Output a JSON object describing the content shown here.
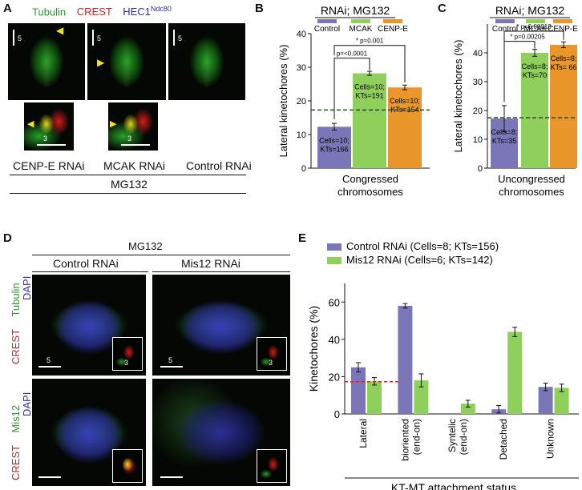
{
  "panels": {
    "A": {
      "label": "A",
      "legend": {
        "tubulin": "Tubulin",
        "crest": "CREST",
        "hec1": "HEC1",
        "hec1_sup": "Ndc80"
      },
      "scale_main": "5",
      "scale_zoom": "3",
      "conditions": [
        "CENP-E RNAi",
        "MCAK RNAi",
        "Control RNAi"
      ],
      "treatment": "MG132",
      "colors": {
        "tubulin": "#2e9a2e",
        "crest": "#d11f2a",
        "hec1": "#2b2fa8"
      }
    },
    "B": {
      "label": "B"
    },
    "C": {
      "label": "C"
    },
    "D": {
      "label": "D",
      "treatment": "MG132",
      "conditions": [
        "Control RNAi",
        "Mis12 RNAi"
      ],
      "row1": {
        "green": "Tubulin",
        "blue": "DAPI",
        "red": "CREST"
      },
      "row2": {
        "green": "Mis12",
        "blue": "DAPI",
        "red": "CREST"
      },
      "scale_main": "5",
      "scale_inset": "3"
    },
    "E": {
      "label": "E"
    }
  },
  "chart_data": [
    {
      "type": "bar",
      "panel": "B",
      "title": "RNAi; MG132",
      "legend": [
        "Control",
        "MCAK",
        "CENP-E"
      ],
      "colors": [
        "#7b76b8",
        "#8fcf5b",
        "#e9962b"
      ],
      "ylabel": "Lateral kinetochores (%)",
      "xlabel": "Congressed chromosomes",
      "ylim": [
        0,
        40
      ],
      "yticks": [
        0,
        10,
        20,
        30,
        40
      ],
      "values": [
        12.3,
        28.2,
        24.0
      ],
      "errors": [
        1.0,
        0.6,
        0.7
      ],
      "bar_labels": [
        [
          "Cells=10;",
          "KTs=166"
        ],
        [
          "Cells=10;",
          "KTs=191"
        ],
        [
          "Cells=10;",
          "KTs=154"
        ]
      ],
      "reference_line": 17.3,
      "significance": [
        "p=<0.0001",
        "* p=0.001"
      ]
    },
    {
      "type": "bar",
      "panel": "C",
      "title": "RNAi; MG132",
      "legend": [
        "Control",
        "MCAK",
        "CENP-E"
      ],
      "colors": [
        "#7b76b8",
        "#8fcf5b",
        "#e9962b"
      ],
      "ylabel": "Lateral kinetochores (%)",
      "xlabel": "Uncongressed chromosomes",
      "ylim": [
        0,
        50
      ],
      "yticks": [
        0,
        10,
        20,
        30,
        40
      ],
      "values": [
        17.2,
        40.0,
        42.8
      ],
      "errors": [
        4.5,
        1.2,
        1.0
      ],
      "bar_labels": [
        [
          "Cells=8;",
          "KTs=35"
        ],
        [
          "Cells=8;",
          "KTs=70"
        ],
        [
          "Cells=8;",
          "KTs= 66"
        ]
      ],
      "reference_line": 17.5,
      "significance": [
        "* p=0.00018",
        "* p=0.00205"
      ]
    },
    {
      "type": "bar",
      "panel": "E",
      "legend": [
        "Control RNAi (Cells=8; KTs=156)",
        "Mis12 RNAi (Cells=6; KTs=142)"
      ],
      "colors": [
        "#7b76b8",
        "#8fcf5b"
      ],
      "ylabel": "Kinetochores (%)",
      "xlabel": "KT-MT attachment status",
      "ylim": [
        0,
        70
      ],
      "yticks": [
        0,
        20,
        40,
        60
      ],
      "categories": [
        "Lateral",
        "bioriented (end-on)",
        "Syntelic (end-on)",
        "Detached",
        "Unknown"
      ],
      "category_lines": [
        [
          "Lateral"
        ],
        [
          "bioriented",
          "(end-on)"
        ],
        [
          "Syntelic",
          "(end-on)"
        ],
        [
          "Detached"
        ],
        [
          "Unknown"
        ]
      ],
      "series": [
        {
          "name": "Control RNAi (Cells=8; KTs=156)",
          "values": [
            25.0,
            58.0,
            0,
            2.5,
            14.5
          ],
          "errors": [
            2.5,
            1.2,
            0,
            2.0,
            2.0
          ]
        },
        {
          "name": "Mis12 RNAi (Cells=6; KTs=142)",
          "values": [
            17.5,
            18.0,
            5.5,
            44.0,
            14.0
          ],
          "errors": [
            2.0,
            3.5,
            1.8,
            2.5,
            2.0
          ]
        }
      ],
      "reference_line": 17.3
    }
  ]
}
